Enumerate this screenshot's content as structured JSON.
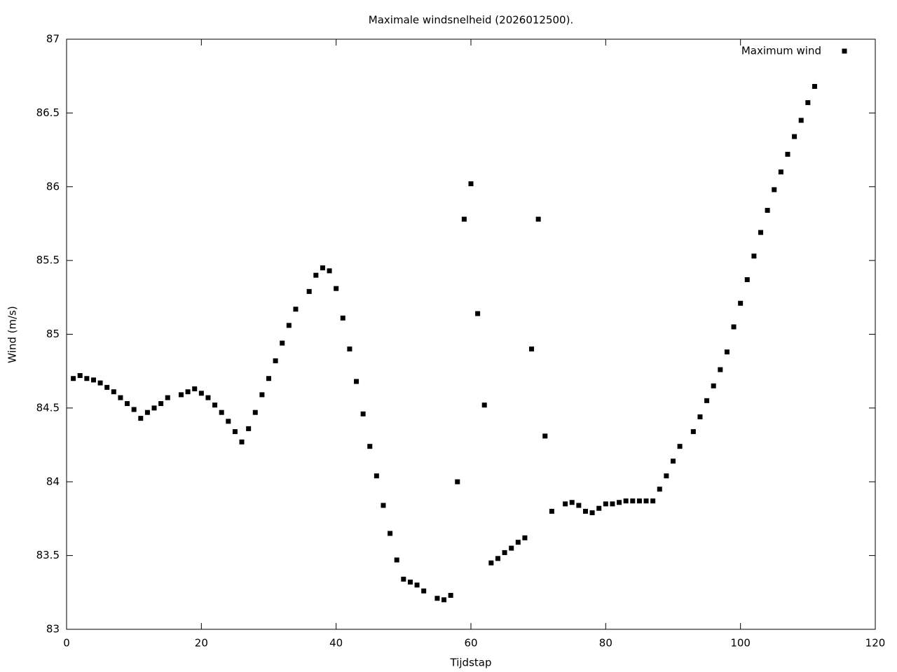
{
  "chart_data": {
    "type": "scatter",
    "title": "Maximale windsnelheid (2026012500).",
    "x_label": "Tijdstap",
    "y_label": "Wind (m/s)",
    "xlim": [
      0,
      120
    ],
    "xticks": [
      0,
      20,
      40,
      60,
      80,
      100,
      120
    ],
    "ylim": [
      83,
      87
    ],
    "yticks": [
      83,
      83.5,
      84,
      84.5,
      85,
      85.5,
      86,
      86.5,
      87
    ],
    "grid": false,
    "legend": "top-right",
    "series": [
      {
        "name": "Maximum wind",
        "color": "#000000",
        "x": [
          1,
          2,
          3,
          4,
          5,
          6,
          7,
          8,
          9,
          10,
          11,
          12,
          13,
          14,
          15,
          17,
          18,
          19,
          20,
          21,
          22,
          23,
          24,
          25,
          26,
          27,
          28,
          29,
          30,
          31,
          32,
          33,
          34,
          36,
          37,
          38,
          39,
          40,
          41,
          42,
          43,
          44,
          45,
          46,
          47,
          48,
          49,
          50,
          51,
          52,
          53,
          55,
          56,
          57,
          58,
          59,
          60,
          61,
          62,
          63,
          64,
          65,
          66,
          67,
          68,
          69,
          70,
          71,
          72,
          74,
          75,
          76,
          77,
          78,
          79,
          80,
          81,
          82,
          83,
          84,
          85,
          86,
          87,
          88,
          89,
          90,
          91,
          93,
          94,
          95,
          96,
          97,
          98,
          99,
          100,
          101,
          102,
          103,
          104,
          105,
          106,
          107,
          108,
          109,
          110,
          111
        ],
        "values": [
          84.7,
          84.72,
          84.7,
          84.69,
          84.67,
          84.64,
          84.61,
          84.57,
          84.53,
          84.49,
          84.43,
          84.47,
          84.5,
          84.53,
          84.57,
          84.59,
          84.61,
          84.63,
          84.6,
          84.57,
          84.52,
          84.47,
          84.41,
          84.34,
          84.27,
          84.36,
          84.47,
          84.59,
          84.7,
          84.82,
          84.94,
          85.06,
          85.17,
          85.29,
          85.4,
          85.45,
          85.43,
          85.31,
          85.11,
          84.9,
          84.68,
          84.46,
          84.24,
          84.04,
          83.84,
          83.65,
          83.47,
          83.34,
          83.32,
          83.3,
          83.26,
          83.21,
          83.2,
          83.23,
          84.0,
          85.78,
          86.02,
          85.14,
          84.52,
          83.45,
          83.48,
          83.52,
          83.55,
          83.59,
          83.62,
          84.9,
          85.78,
          84.31,
          83.8,
          83.85,
          83.86,
          83.84,
          83.8,
          83.79,
          83.82,
          83.85,
          83.85,
          83.86,
          83.87,
          83.87,
          83.87,
          83.87,
          83.87,
          83.95,
          84.04,
          84.14,
          84.24,
          84.34,
          84.44,
          84.55,
          84.65,
          84.76,
          84.88,
          85.05,
          85.21,
          85.37,
          85.53,
          85.69,
          85.84,
          85.98,
          86.1,
          86.22,
          86.34,
          86.45,
          86.57,
          86.68
        ]
      }
    ]
  }
}
